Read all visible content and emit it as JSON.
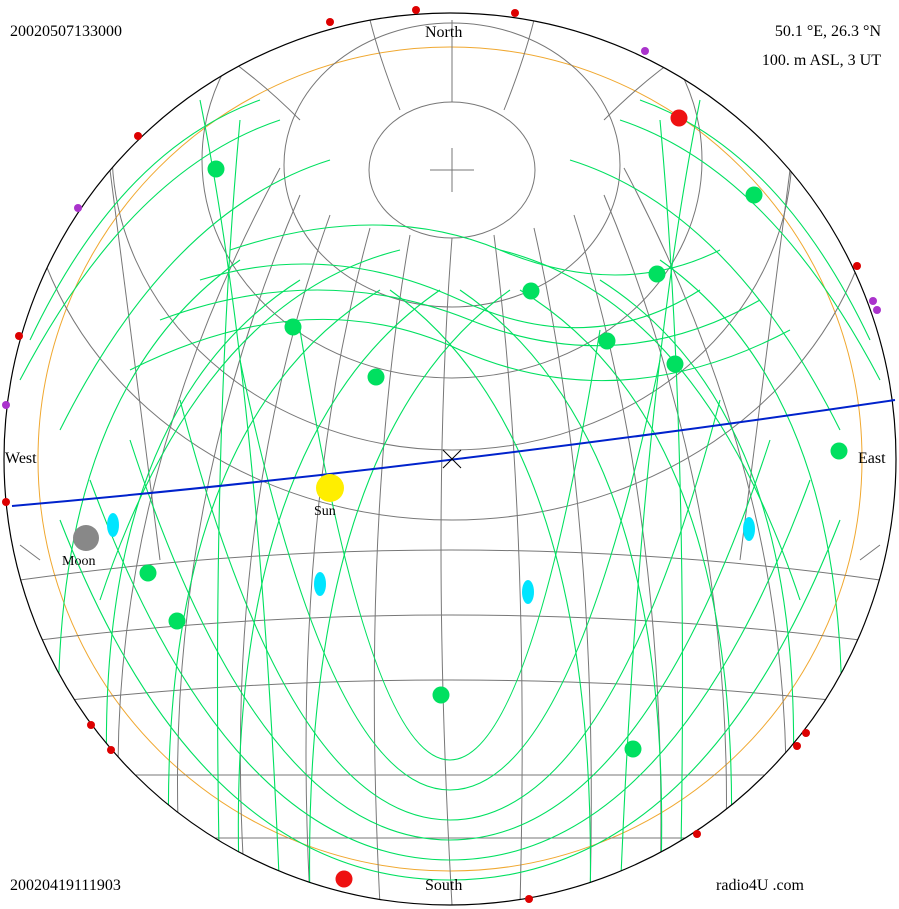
{
  "corner_text": {
    "top_left": "20020507133000",
    "bottom_left": "20020419111903",
    "top_right_line1": "50.1 °E,  26.3 °N",
    "top_right_line2": "100. m ASL, 3 UT",
    "bottom_right": "radio4U .com"
  },
  "directions": {
    "north": "North",
    "south": "South",
    "east": "East",
    "west": "West"
  },
  "bodies": {
    "sun": "Sun",
    "moon": "Moon"
  },
  "colors": {
    "horizon": "#000000",
    "grid": "#777777",
    "orbit_tracks": "#00e060",
    "satellite": "#00e060",
    "ecliptic": "#0022cc",
    "twilight_ring": "#f0a830",
    "sun": "#ffee00",
    "moon": "#888888",
    "planet": "#00e5ff",
    "horizon_marker_red": "#dd0000",
    "horizon_marker_violet": "#aa33cc"
  }
}
